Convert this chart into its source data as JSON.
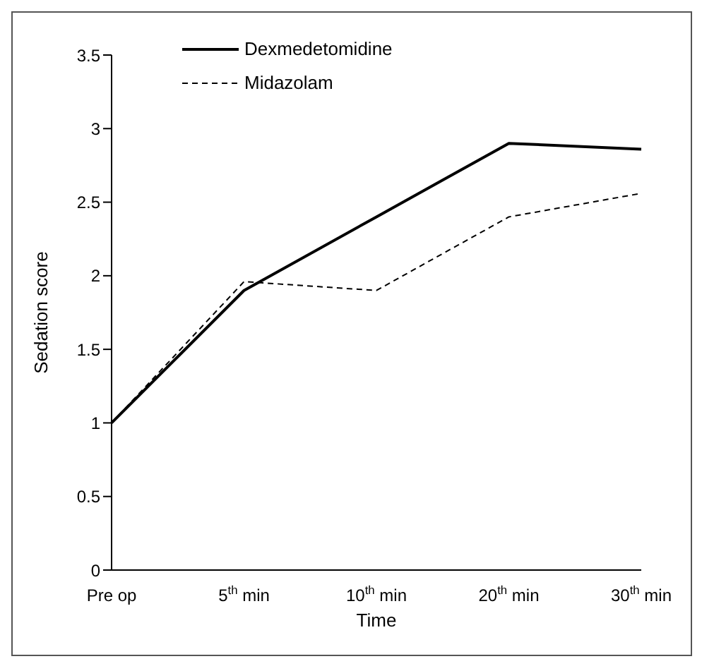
{
  "chart_data": {
    "type": "line",
    "xlabel": "Time",
    "ylabel": "Sedation score",
    "categories": [
      "Pre op",
      "5$^{th}$ min",
      "10$^{th}$ min",
      "20$^{th}$ min",
      "30$^{th}$ min"
    ],
    "series": [
      {
        "name": "Dexmedetomidine",
        "color": "#000000",
        "line_style": "solid",
        "values": [
          1,
          1.9,
          2.4,
          2.9,
          2.86
        ]
      },
      {
        "name": "Midazolam",
        "color": "#000000",
        "line_style": "dashed",
        "values": [
          1,
          1.96,
          1.9,
          2.4,
          2.56
        ]
      }
    ],
    "ylim": [
      0,
      3.5
    ],
    "yticks": [
      0,
      0.5,
      1,
      1.5,
      2,
      2.5,
      3,
      3.5
    ],
    "grid": false,
    "legend": "top left",
    "marker": "none"
  }
}
